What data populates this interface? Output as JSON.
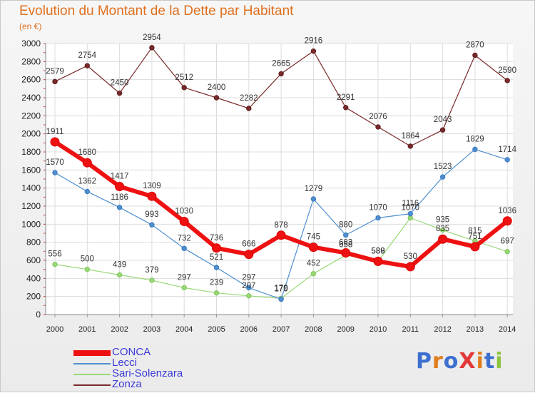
{
  "title": "Evolution du Montant de la Dette par Habitant",
  "subtitle": "(en €)",
  "logo": "ProXiti",
  "chart_data": {
    "type": "line",
    "title": "Evolution du Montant de la Dette par Habitant",
    "subtitle": "(en €)",
    "x": [
      "2000",
      "2001",
      "2002",
      "2003",
      "2004",
      "2005",
      "2006",
      "2007",
      "2008",
      "2009",
      "2010",
      "2011",
      "2012",
      "2013",
      "2014"
    ],
    "ylim": [
      0,
      3000
    ],
    "yticks": [
      0,
      200,
      400,
      600,
      800,
      1000,
      1200,
      1400,
      1600,
      1800,
      2000,
      2200,
      2400,
      2600,
      2800,
      3000
    ],
    "grid": true,
    "legend_position": "bottom-left",
    "series": [
      {
        "name": "CONCA",
        "color": "#ee1111",
        "values": [
          1911,
          1680,
          1417,
          1309,
          1030,
          736,
          666,
          878,
          745,
          683,
          589,
          530,
          835,
          751,
          1036
        ]
      },
      {
        "name": "Lecci",
        "color": "#4d8fd1",
        "values": [
          1570,
          1362,
          1186,
          993,
          732,
          521,
          297,
          170,
          1279,
          880,
          1070,
          1116,
          1523,
          1829,
          1714
        ]
      },
      {
        "name": "Sari-Solenzara",
        "color": "#99d977",
        "values": [
          556,
          500,
          439,
          379,
          297,
          239,
          207,
          179,
          452,
          658,
          588,
          1070,
          935,
          815,
          697
        ]
      },
      {
        "name": "Zonza",
        "color": "#7a2a2a",
        "values": [
          2579,
          2754,
          2450,
          2954,
          2512,
          2400,
          2282,
          2665,
          2916,
          2291,
          2076,
          1864,
          2043,
          2870,
          2590
        ]
      }
    ]
  }
}
